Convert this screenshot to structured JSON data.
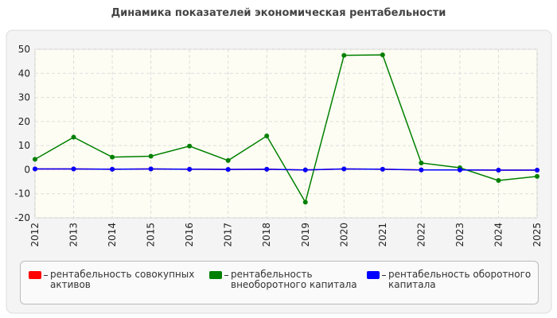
{
  "chart_data": {
    "type": "line",
    "title": "Динамика показателей экономическая рентабельности",
    "categories": [
      "2012",
      "2013",
      "2014",
      "2015",
      "2016",
      "2017",
      "2018",
      "2019",
      "2020",
      "2021",
      "2022",
      "2023",
      "2024",
      "2025"
    ],
    "series": [
      {
        "name": "рентабельность совокупных активов",
        "color": "#ff0000",
        "values": [
          0.3,
          0.3,
          0.2,
          0.3,
          0.2,
          0.1,
          0.2,
          -0.1,
          0.3,
          0.2,
          -0.1,
          -0.1,
          -0.2,
          -0.2
        ]
      },
      {
        "name": "рентабельность внеоборотного капитала",
        "color": "#008000",
        "values": [
          4.3,
          13.5,
          5.2,
          5.6,
          9.8,
          3.8,
          14,
          -13.5,
          47.5,
          47.7,
          2.8,
          0.8,
          -4.5,
          -2.8
        ]
      },
      {
        "name": "рентабельность оборотного капитала",
        "color": "#0000ff",
        "values": [
          0.3,
          0.3,
          0.2,
          0.3,
          0.2,
          0.1,
          0.2,
          -0.1,
          0.3,
          0.2,
          -0.1,
          -0.1,
          -0.2,
          -0.2
        ]
      }
    ],
    "ylim": [
      -20,
      50
    ],
    "yticks": [
      -20,
      -10,
      0,
      10,
      20,
      30,
      40,
      50
    ],
    "grid": true
  }
}
